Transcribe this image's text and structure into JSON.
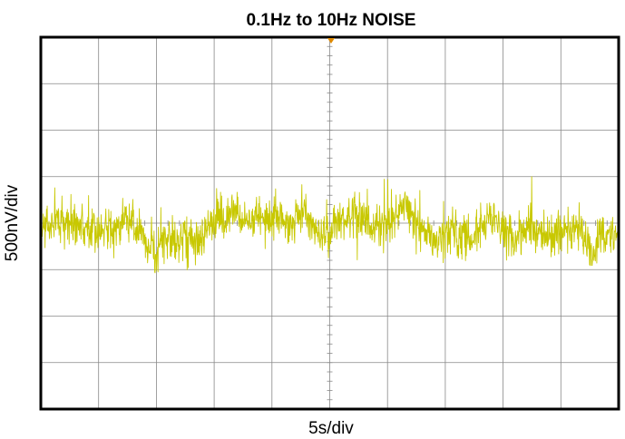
{
  "chart_data": {
    "type": "line",
    "title": "0.1Hz to 10Hz NOISE",
    "xlabel": "5s/div",
    "ylabel": "500nV/div",
    "x_divisions": 10,
    "y_divisions": 8,
    "xlim": [
      0,
      50
    ],
    "ylim": [
      -2000,
      2000
    ],
    "x_unit": "s",
    "y_unit": "nV",
    "grid": true,
    "series": [
      {
        "trace_color": "#c8c800",
        "noise_band_pp_nV": 700,
        "peak_pos_nV": 500,
        "peak_neg_nV": -620,
        "center_nV": -50,
        "note_shape": "broadband noise centered slightly below mid-screen"
      }
    ],
    "colors": {
      "trace": "#c8c800",
      "grid": "#888888",
      "frame": "#000000",
      "marker": "#e08a00"
    }
  }
}
